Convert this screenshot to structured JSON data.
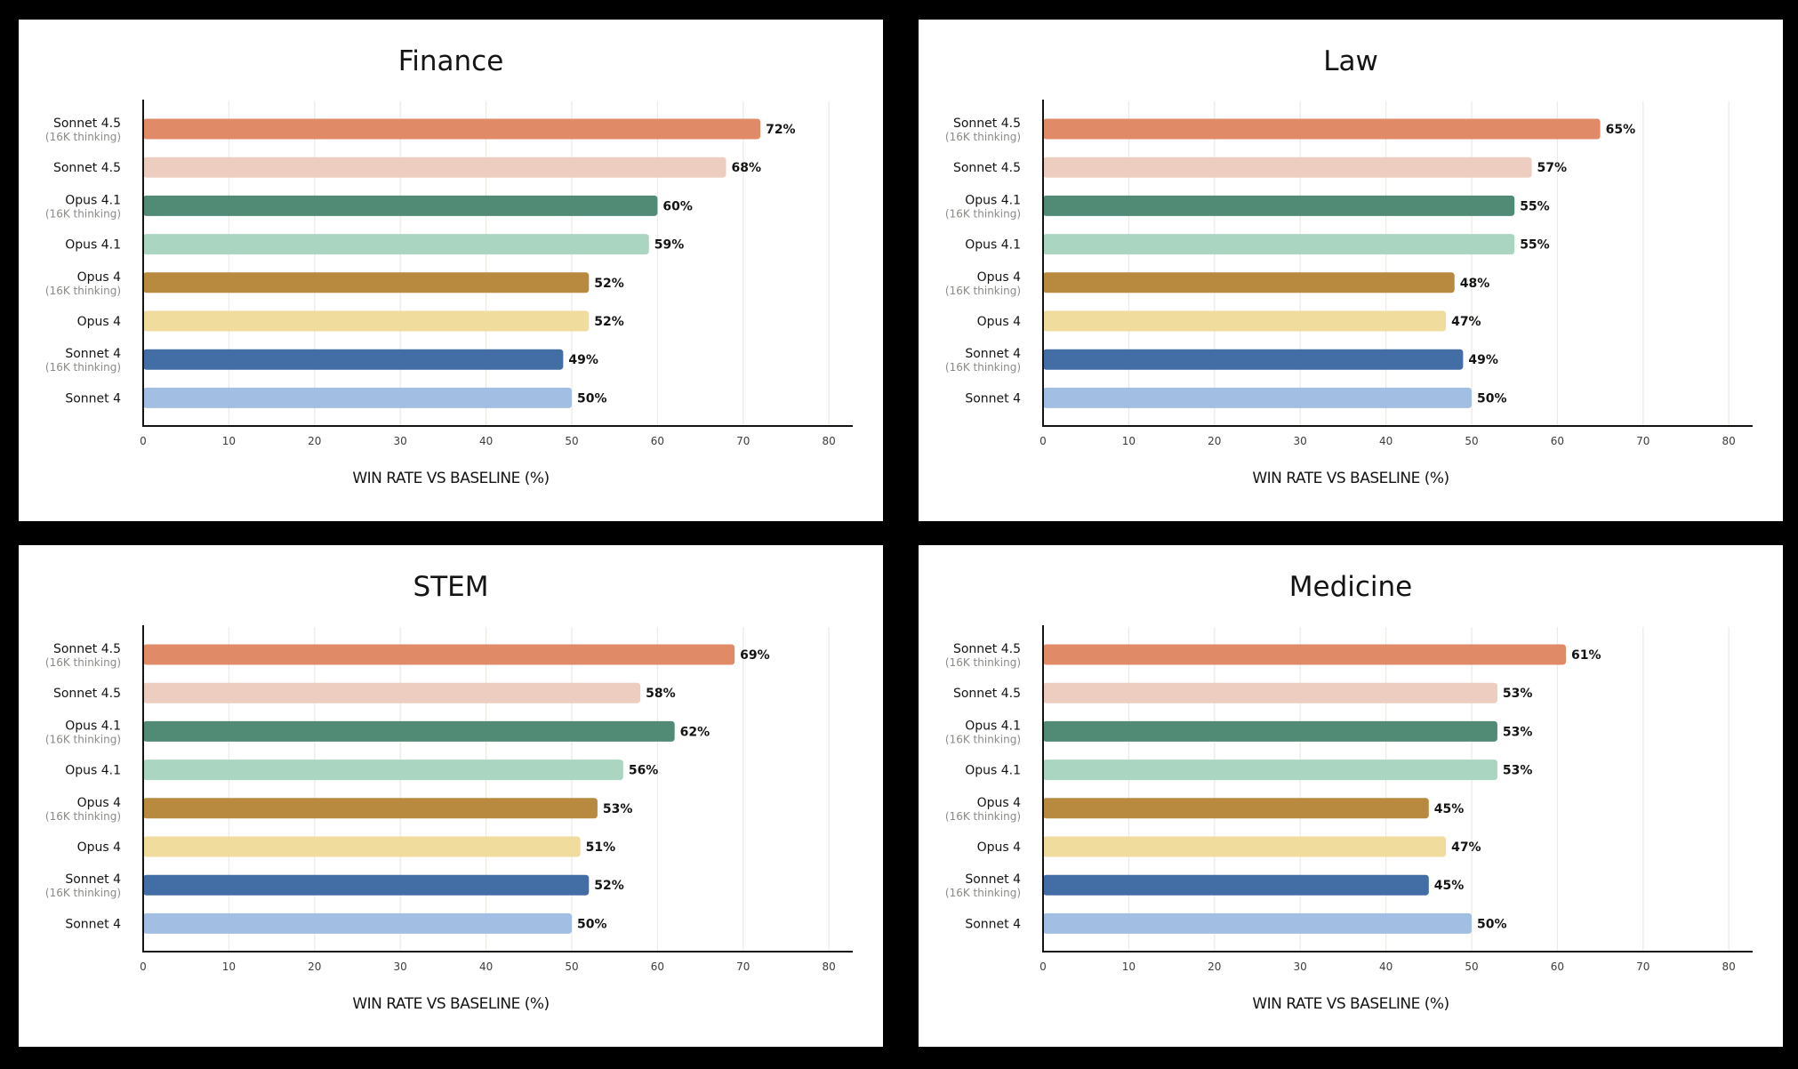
{
  "chart_data": [
    {
      "type": "bar",
      "orientation": "horizontal",
      "title": "Finance",
      "xlabel": "WIN RATE VS BASELINE (%)",
      "xlim": [
        0,
        83
      ],
      "xticks": [
        "0",
        "10",
        "20",
        "30",
        "40",
        "50",
        "60",
        "70",
        "80"
      ],
      "grid": true,
      "categories": [
        {
          "name": "Sonnet 4.5",
          "sub": "(16K thinking)"
        },
        {
          "name": "Sonnet 4.5",
          "sub": ""
        },
        {
          "name": "Opus 4.1",
          "sub": "(16K thinking)"
        },
        {
          "name": "Opus 4.1",
          "sub": ""
        },
        {
          "name": "Opus 4",
          "sub": "(16K thinking)"
        },
        {
          "name": "Opus 4",
          "sub": ""
        },
        {
          "name": "Sonnet 4",
          "sub": "(16K thinking)"
        },
        {
          "name": "Sonnet 4",
          "sub": ""
        }
      ],
      "values": [
        72,
        68,
        60,
        59,
        52,
        52,
        49,
        50
      ],
      "value_labels": [
        "72%",
        "68%",
        "60%",
        "59%",
        "52%",
        "52%",
        "49%",
        "50%"
      ]
    },
    {
      "type": "bar",
      "orientation": "horizontal",
      "title": "Law",
      "xlabel": "WIN RATE VS BASELINE (%)",
      "xlim": [
        0,
        83
      ],
      "xticks": [
        "0",
        "10",
        "20",
        "30",
        "40",
        "50",
        "60",
        "70",
        "80"
      ],
      "grid": true,
      "categories": [
        {
          "name": "Sonnet 4.5",
          "sub": "(16K thinking)"
        },
        {
          "name": "Sonnet 4.5",
          "sub": ""
        },
        {
          "name": "Opus 4.1",
          "sub": "(16K thinking)"
        },
        {
          "name": "Opus 4.1",
          "sub": ""
        },
        {
          "name": "Opus 4",
          "sub": "(16K thinking)"
        },
        {
          "name": "Opus 4",
          "sub": ""
        },
        {
          "name": "Sonnet 4",
          "sub": "(16K thinking)"
        },
        {
          "name": "Sonnet 4",
          "sub": ""
        }
      ],
      "values": [
        65,
        57,
        55,
        55,
        48,
        47,
        49,
        50
      ],
      "value_labels": [
        "65%",
        "57%",
        "55%",
        "55%",
        "48%",
        "47%",
        "49%",
        "50%"
      ]
    },
    {
      "type": "bar",
      "orientation": "horizontal",
      "title": "STEM",
      "xlabel": "WIN RATE VS BASELINE (%)",
      "xlim": [
        0,
        83
      ],
      "xticks": [
        "0",
        "10",
        "20",
        "30",
        "40",
        "50",
        "60",
        "70",
        "80"
      ],
      "grid": true,
      "categories": [
        {
          "name": "Sonnet 4.5",
          "sub": "(16K thinking)"
        },
        {
          "name": "Sonnet 4.5",
          "sub": ""
        },
        {
          "name": "Opus 4.1",
          "sub": "(16K thinking)"
        },
        {
          "name": "Opus 4.1",
          "sub": ""
        },
        {
          "name": "Opus 4",
          "sub": "(16K thinking)"
        },
        {
          "name": "Opus 4",
          "sub": ""
        },
        {
          "name": "Sonnet 4",
          "sub": "(16K thinking)"
        },
        {
          "name": "Sonnet 4",
          "sub": ""
        }
      ],
      "values": [
        69,
        58,
        62,
        56,
        53,
        51,
        52,
        50
      ],
      "value_labels": [
        "69%",
        "58%",
        "62%",
        "56%",
        "53%",
        "51%",
        "52%",
        "50%"
      ]
    },
    {
      "type": "bar",
      "orientation": "horizontal",
      "title": "Medicine",
      "xlabel": "WIN RATE VS BASELINE (%)",
      "xlim": [
        0,
        83
      ],
      "xticks": [
        "0",
        "10",
        "20",
        "30",
        "40",
        "50",
        "60",
        "70",
        "80"
      ],
      "grid": true,
      "categories": [
        {
          "name": "Sonnet 4.5",
          "sub": "(16K thinking)"
        },
        {
          "name": "Sonnet 4.5",
          "sub": ""
        },
        {
          "name": "Opus 4.1",
          "sub": "(16K thinking)"
        },
        {
          "name": "Opus 4.1",
          "sub": ""
        },
        {
          "name": "Opus 4",
          "sub": "(16K thinking)"
        },
        {
          "name": "Opus 4",
          "sub": ""
        },
        {
          "name": "Sonnet 4",
          "sub": "(16K thinking)"
        },
        {
          "name": "Sonnet 4",
          "sub": ""
        }
      ],
      "values": [
        61,
        53,
        53,
        53,
        45,
        47,
        45,
        50
      ],
      "value_labels": [
        "61%",
        "53%",
        "53%",
        "53%",
        "45%",
        "47%",
        "45%",
        "50%"
      ]
    }
  ],
  "bar_colors": [
    "#E08A68",
    "#EDCDBF",
    "#528B75",
    "#A9D5C1",
    "#B88A40",
    "#F0DC9C",
    "#426DA5",
    "#A3BEE3"
  ]
}
